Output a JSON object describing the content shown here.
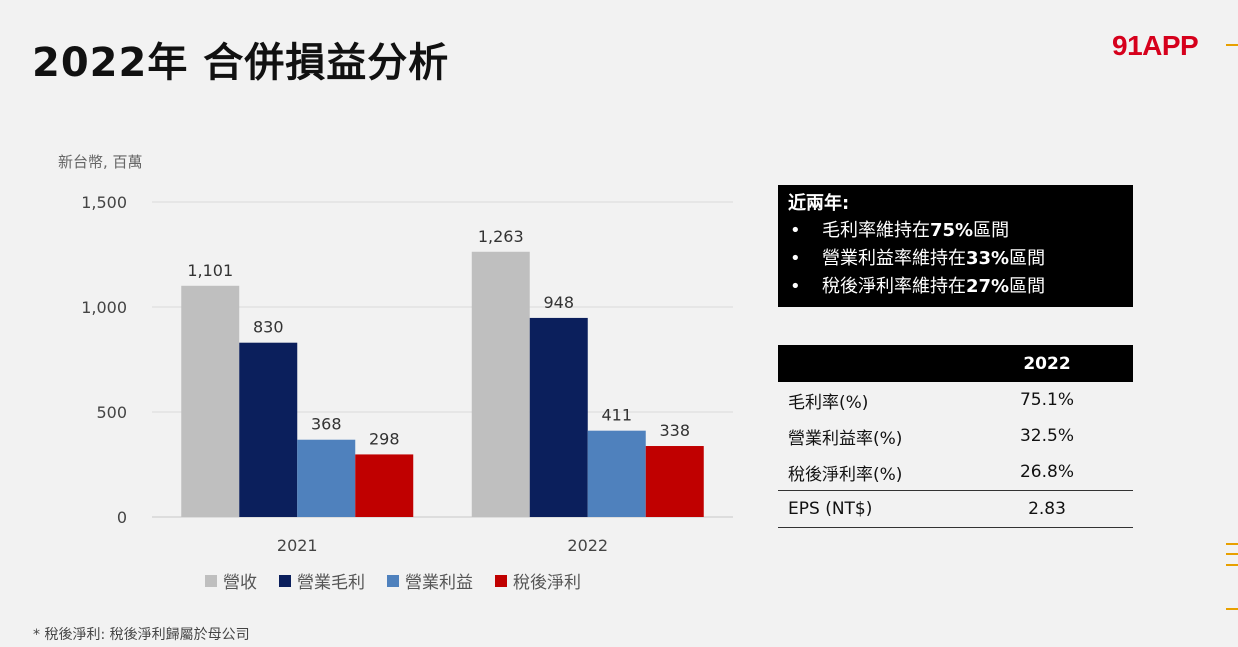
{
  "title": "2022年 合併損益分析",
  "logo_text": "91APP",
  "footnote": "* 稅後淨利: 稅後淨利歸屬於母公司",
  "highlight": {
    "heading": "近兩年:",
    "items": [
      {
        "prefix": "毛利率維持在",
        "bold": "75%",
        "suffix": "區間"
      },
      {
        "prefix": "營業利益率維持在",
        "bold": "33%",
        "suffix": "區間"
      },
      {
        "prefix": "稅後淨利率維持在",
        "bold": "27%",
        "suffix": "區間"
      }
    ]
  },
  "ratio_table": {
    "year_header": "2022",
    "rows": [
      {
        "label": "毛利率(%)",
        "value": "75.1%"
      },
      {
        "label": "營業利益率(%)",
        "value": "32.5%"
      },
      {
        "label": "稅後淨利率(%)",
        "value": "26.8%"
      },
      {
        "label": "EPS (NT$)",
        "value": "2.83"
      }
    ]
  },
  "chart_data": {
    "type": "bar",
    "unit_label": "新台幣, 百萬",
    "categories": [
      "2021",
      "2022"
    ],
    "series": [
      {
        "name": "營收",
        "color": "#bfbfbf",
        "values": [
          1101,
          1263
        ],
        "labels": [
          "1,101",
          "1,263"
        ]
      },
      {
        "name": "營業毛利",
        "color": "#0b1f5c",
        "values": [
          830,
          948
        ],
        "labels": [
          "830",
          "948"
        ]
      },
      {
        "name": "營業利益",
        "color": "#4f81bd",
        "values": [
          368,
          411
        ],
        "labels": [
          "368",
          "411"
        ]
      },
      {
        "name": "稅後淨利",
        "color": "#c00000",
        "values": [
          298,
          338
        ],
        "labels": [
          "298",
          "338"
        ]
      }
    ],
    "ylim": [
      0,
      1500
    ],
    "yticks": [
      0,
      500,
      1000,
      1500
    ],
    "ytick_labels": [
      "0",
      "500",
      "1,000",
      "1,500"
    ],
    "grid": true,
    "legend_position": "bottom"
  }
}
